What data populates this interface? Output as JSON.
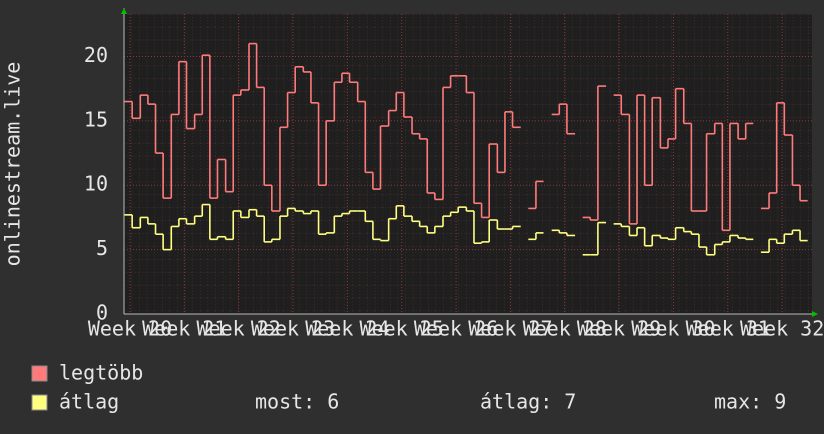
{
  "chart_data": {
    "type": "step-line",
    "y_label": "onlinestream.live",
    "xlim": [
      19.89,
      32.55
    ],
    "xticks": [
      {
        "value": 20,
        "label": "Week 20"
      },
      {
        "value": 21,
        "label": "Week 21"
      },
      {
        "value": 22,
        "label": "Week 22"
      },
      {
        "value": 23,
        "label": "Week 23"
      },
      {
        "value": 24,
        "label": "Week 24"
      },
      {
        "value": 25,
        "label": "Week 25"
      },
      {
        "value": 26,
        "label": "Week 26"
      },
      {
        "value": 27,
        "label": "Week 27"
      },
      {
        "value": 28,
        "label": "Week 28"
      },
      {
        "value": 29,
        "label": "Week 29"
      },
      {
        "value": 30,
        "label": "Week 30"
      },
      {
        "value": 31,
        "label": "Week 31"
      },
      {
        "value": 32,
        "label": "Week 32"
      }
    ],
    "ylim": [
      0,
      23.3
    ],
    "yticks": [
      0,
      5,
      10,
      15,
      20
    ],
    "grid": true,
    "x": [
      19.9,
      20.04,
      20.19,
      20.33,
      20.47,
      20.61,
      20.76,
      20.9,
      21.04,
      21.19,
      21.33,
      21.47,
      21.61,
      21.76,
      21.9,
      22.04,
      22.19,
      22.33,
      22.47,
      22.61,
      22.76,
      22.9,
      23.04,
      23.19,
      23.33,
      23.47,
      23.61,
      23.76,
      23.9,
      24.04,
      24.19,
      24.33,
      24.47,
      24.61,
      24.76,
      24.9,
      25.04,
      25.19,
      25.33,
      25.47,
      25.61,
      25.76,
      25.9,
      26.04,
      26.19,
      26.33,
      26.47,
      26.61,
      26.76,
      26.9,
      27.04,
      27.19,
      27.33,
      27.47,
      27.61,
      27.76,
      27.9,
      28.04,
      28.19,
      28.33,
      28.47,
      28.61,
      28.76,
      28.9,
      29.04,
      29.19,
      29.33,
      29.47,
      29.61,
      29.76,
      29.9,
      30.04,
      30.19,
      30.33,
      30.47,
      30.61,
      30.76,
      30.9,
      31.04,
      31.19,
      31.33,
      31.47,
      31.61,
      31.76,
      31.9,
      32.04,
      32.19,
      32.33
    ],
    "series": [
      {
        "name": "legtöbb",
        "color": "#ff7b7b",
        "values": [
          16.5,
          15.2,
          17,
          16.3,
          12.5,
          9,
          15.5,
          19.6,
          14.4,
          15.5,
          20.1,
          9,
          12,
          9.5,
          17,
          17.4,
          21,
          17.6,
          10,
          8,
          14.5,
          17.2,
          19.2,
          18.8,
          16.4,
          10,
          15,
          18,
          18.7,
          18,
          16.5,
          11,
          9.7,
          14.6,
          15.8,
          17.2,
          15.3,
          14,
          13.6,
          9.4,
          8.9,
          17.6,
          18.5,
          18.5,
          17.2,
          8.6,
          7.5,
          13.2,
          11,
          15.7,
          14.5,
          null,
          8.2,
          10.3,
          null,
          15.5,
          16.3,
          14,
          null,
          7.5,
          7.3,
          17.7,
          null,
          17,
          15.5,
          7,
          17,
          10,
          16.8,
          12.9,
          13.6,
          17.5,
          14.8,
          8,
          8,
          14,
          14.8,
          6.5,
          14.8,
          13.6,
          14.8,
          null,
          8.2,
          9.4,
          16.4,
          13.9,
          10,
          8.8
        ]
      },
      {
        "name": "átlag",
        "color": "#ffff80",
        "values": [
          7.7,
          6.7,
          7.5,
          7,
          6.2,
          5,
          6.8,
          7.4,
          7,
          7.6,
          8.5,
          5.8,
          6,
          5.8,
          8,
          7.5,
          8.1,
          7.6,
          5.6,
          5.8,
          7.6,
          8.2,
          8,
          7.8,
          8,
          6.2,
          6.3,
          7.6,
          7.8,
          8,
          8,
          7.2,
          5.8,
          5.7,
          7.4,
          8.4,
          7.6,
          7.2,
          6.8,
          6.3,
          6.8,
          7.6,
          7.9,
          8.3,
          8,
          5.5,
          5.6,
          7.3,
          6.6,
          6.6,
          6.8,
          null,
          5.8,
          6.3,
          null,
          6.5,
          6.3,
          6.1,
          null,
          4.6,
          4.6,
          7.1,
          null,
          7,
          6.8,
          6.1,
          6.7,
          5.3,
          6.1,
          5.9,
          5.8,
          6.7,
          6.4,
          6.2,
          5.2,
          4.6,
          5.4,
          5.6,
          6.1,
          5.9,
          5.8,
          null,
          4.8,
          5.8,
          5.5,
          6.2,
          6.5,
          5.7
        ]
      }
    ],
    "stats": [
      "most: 6",
      "átlag: 7",
      "max: 9"
    ]
  }
}
